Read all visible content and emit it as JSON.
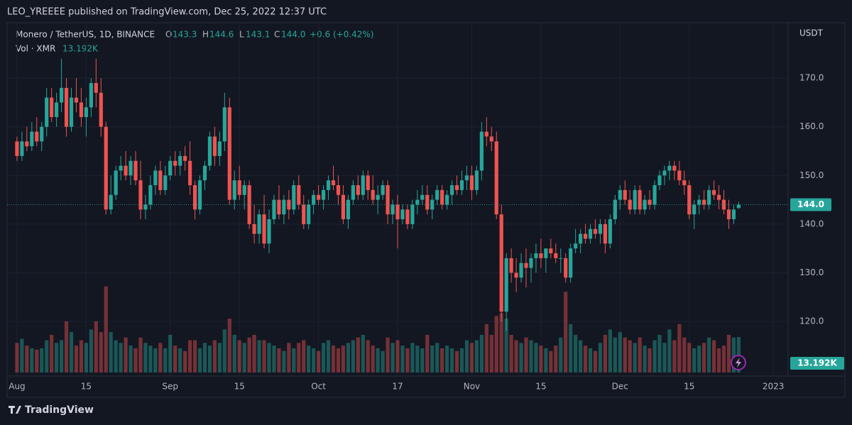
{
  "chart_data": {
    "type": "candlestick",
    "header": "LEO_YREEEE published on TradingView.com, Dec 25, 2022 12:37 UTC",
    "symbol": "Monero / TetherUS, 1D, BINANCE",
    "ohlc_letters": [
      "O",
      "H",
      "L",
      "C"
    ],
    "last_labels": [
      "143.3",
      "144.6",
      "143.1",
      "144.0"
    ],
    "change": "+0.6 (+0.42%)",
    "volume_title": "Vol · XMR",
    "volume_label": "13.192K",
    "price_label": "144.0",
    "y_unit": "USDT",
    "footer": "TradingView",
    "up_color": "#26a69a",
    "down_color": "#ef5350",
    "grid": true,
    "xlim": [
      "2022-07-30",
      "2023-01-04"
    ],
    "ylim": [
      109.5,
      181.4
    ],
    "volume_ylim": [
      0,
      130
    ],
    "yticks": [
      {
        "value": 120,
        "label": "120.0"
      },
      {
        "value": 130,
        "label": "130.0"
      },
      {
        "value": 140,
        "label": "140.0"
      },
      {
        "value": 150,
        "label": "150.0"
      },
      {
        "value": 160,
        "label": "160.0"
      },
      {
        "value": 170,
        "label": "170.0"
      }
    ],
    "xticks": [
      {
        "value": "2022-08-01",
        "label": "Aug"
      },
      {
        "value": "2022-08-15",
        "label": "15"
      },
      {
        "value": "2022-09-01",
        "label": "Sep"
      },
      {
        "value": "2022-09-15",
        "label": "15"
      },
      {
        "value": "2022-10-01",
        "label": "Oct"
      },
      {
        "value": "2022-10-17",
        "label": "17"
      },
      {
        "value": "2022-11-01",
        "label": "Nov"
      },
      {
        "value": "2022-11-15",
        "label": "15"
      },
      {
        "value": "2022-12-01",
        "label": "Dec"
      },
      {
        "value": "2022-12-15",
        "label": "15"
      },
      {
        "value": "2023-01-01",
        "label": "2023"
      }
    ],
    "candles": [
      [
        "2022-08-01",
        157,
        158,
        153,
        154,
        11
      ],
      [
        "2022-08-02",
        154,
        159,
        153,
        157,
        12.5
      ],
      [
        "2022-08-03",
        157,
        160,
        155,
        156,
        10
      ],
      [
        "2022-08-04",
        156,
        161,
        155,
        159,
        9
      ],
      [
        "2022-08-05",
        159,
        162,
        156,
        157,
        8.5
      ],
      [
        "2022-08-06",
        157,
        161,
        155,
        160,
        9
      ],
      [
        "2022-08-07",
        160,
        168,
        158,
        166,
        12
      ],
      [
        "2022-08-08",
        166,
        168,
        161,
        162,
        14
      ],
      [
        "2022-08-09",
        162,
        167,
        160,
        165,
        11
      ],
      [
        "2022-08-10",
        165,
        174,
        163,
        168,
        12
      ],
      [
        "2022-08-11",
        168,
        170,
        158,
        160,
        19
      ],
      [
        "2022-08-12",
        160,
        168,
        159,
        166,
        15
      ],
      [
        "2022-08-13",
        166,
        170,
        163,
        165,
        10
      ],
      [
        "2022-08-14",
        165,
        168,
        160,
        162,
        12
      ],
      [
        "2022-08-15",
        162,
        166,
        158,
        164,
        11
      ],
      [
        "2022-08-16",
        164,
        170,
        162,
        169,
        16
      ],
      [
        "2022-08-17",
        169,
        174,
        164,
        167,
        19
      ],
      [
        "2022-08-18",
        167,
        170,
        158,
        160,
        15
      ],
      [
        "2022-08-19",
        160,
        161,
        142,
        143,
        32
      ],
      [
        "2022-08-20",
        143,
        150,
        142,
        146,
        15
      ],
      [
        "2022-08-21",
        146,
        152,
        145,
        151,
        12
      ],
      [
        "2022-08-22",
        151,
        154,
        149,
        152,
        11
      ],
      [
        "2022-08-23",
        152,
        155,
        149,
        150,
        13
      ],
      [
        "2022-08-24",
        150,
        154,
        148,
        153,
        10
      ],
      [
        "2022-08-25",
        153,
        155,
        148,
        149,
        9
      ],
      [
        "2022-08-26",
        149,
        153,
        141,
        143,
        13
      ],
      [
        "2022-08-27",
        143,
        146,
        141,
        144,
        11
      ],
      [
        "2022-08-28",
        144,
        150,
        143,
        148,
        10
      ],
      [
        "2022-08-29",
        148,
        152,
        146,
        151,
        9
      ],
      [
        "2022-08-30",
        151,
        153,
        146,
        147,
        11
      ],
      [
        "2022-08-31",
        147,
        152,
        146,
        150,
        9
      ],
      [
        "2022-09-01",
        150,
        154,
        149,
        153,
        14
      ],
      [
        "2022-09-02",
        153,
        155,
        150,
        152,
        10
      ],
      [
        "2022-09-03",
        152,
        155,
        150,
        154,
        9
      ],
      [
        "2022-09-04",
        154,
        156,
        151,
        153,
        8
      ],
      [
        "2022-09-05",
        153,
        157,
        146,
        148,
        12
      ],
      [
        "2022-09-06",
        148,
        149,
        141,
        143,
        12
      ],
      [
        "2022-09-07",
        143,
        150,
        142,
        149,
        9
      ],
      [
        "2022-09-08",
        149,
        153,
        147,
        152,
        11
      ],
      [
        "2022-09-09",
        152,
        159,
        151,
        158,
        10
      ],
      [
        "2022-09-10",
        158,
        160,
        152,
        154,
        12
      ],
      [
        "2022-09-11",
        154,
        159,
        152,
        157,
        11
      ],
      [
        "2022-09-12",
        157,
        167,
        155,
        164,
        16
      ],
      [
        "2022-09-13",
        164,
        166,
        144,
        145,
        20
      ],
      [
        "2022-09-14",
        145,
        151,
        143,
        149,
        14
      ],
      [
        "2022-09-15",
        149,
        152,
        145,
        146,
        12
      ],
      [
        "2022-09-16",
        146,
        149,
        143,
        148,
        11
      ],
      [
        "2022-09-17",
        148,
        149,
        139,
        140,
        13
      ],
      [
        "2022-09-18",
        140,
        144,
        136,
        138,
        14
      ],
      [
        "2022-09-19",
        138,
        143,
        136,
        142,
        12
      ],
      [
        "2022-09-20",
        142,
        146,
        135,
        136,
        12
      ],
      [
        "2022-09-21",
        136,
        143,
        134,
        141,
        11
      ],
      [
        "2022-09-22",
        141,
        146,
        140,
        145,
        10
      ],
      [
        "2022-09-23",
        145,
        148,
        141,
        142,
        9
      ],
      [
        "2022-09-24",
        142,
        146,
        140,
        145,
        8
      ],
      [
        "2022-09-25",
        145,
        147,
        141,
        143,
        11
      ],
      [
        "2022-09-26",
        143,
        149,
        142,
        148,
        9
      ],
      [
        "2022-09-27",
        148,
        150,
        143,
        144,
        11
      ],
      [
        "2022-09-28",
        144,
        146,
        139,
        140,
        12
      ],
      [
        "2022-09-29",
        140,
        145,
        139,
        144,
        10
      ],
      [
        "2022-09-30",
        144,
        147,
        142,
        146,
        9
      ],
      [
        "2022-10-01",
        146,
        148,
        144,
        145,
        8
      ],
      [
        "2022-10-02",
        145,
        148,
        143,
        147,
        11
      ],
      [
        "2022-10-03",
        147,
        150,
        145,
        149,
        12
      ],
      [
        "2022-10-04",
        149,
        152,
        147,
        148,
        10
      ],
      [
        "2022-10-05",
        148,
        150,
        144,
        146,
        9
      ],
      [
        "2022-10-06",
        146,
        148,
        140,
        141,
        10
      ],
      [
        "2022-10-07",
        141,
        146,
        139,
        145,
        11
      ],
      [
        "2022-10-08",
        145,
        149,
        144,
        148,
        12
      ],
      [
        "2022-10-09",
        148,
        150,
        145,
        146,
        13
      ],
      [
        "2022-10-10",
        146,
        151,
        145,
        150,
        14
      ],
      [
        "2022-10-11",
        150,
        151,
        145,
        147,
        12
      ],
      [
        "2022-10-12",
        147,
        150,
        144,
        145,
        10
      ],
      [
        "2022-10-13",
        145,
        148,
        142,
        146,
        9
      ],
      [
        "2022-10-14",
        146,
        149,
        145,
        148,
        8
      ],
      [
        "2022-10-15",
        148,
        149,
        140,
        142,
        13
      ],
      [
        "2022-10-16",
        142,
        145,
        140,
        144,
        11
      ],
      [
        "2022-10-17",
        144,
        146,
        135,
        141,
        12
      ],
      [
        "2022-10-18",
        141,
        144,
        140,
        143,
        10
      ],
      [
        "2022-10-19",
        143,
        144,
        139,
        140,
        9
      ],
      [
        "2022-10-20",
        140,
        145,
        139,
        144,
        11
      ],
      [
        "2022-10-21",
        144,
        147,
        142,
        145,
        10
      ],
      [
        "2022-10-22",
        145,
        148,
        144,
        146,
        9
      ],
      [
        "2022-10-23",
        146,
        148,
        142,
        143,
        14
      ],
      [
        "2022-10-24",
        143,
        146,
        141,
        145,
        10
      ],
      [
        "2022-10-25",
        145,
        148,
        144,
        147,
        11
      ],
      [
        "2022-10-26",
        147,
        148,
        143,
        144,
        9
      ],
      [
        "2022-10-27",
        144,
        147,
        143,
        146,
        10
      ],
      [
        "2022-10-28",
        146,
        149,
        144,
        148,
        9
      ],
      [
        "2022-10-29",
        148,
        150,
        146,
        147,
        8
      ],
      [
        "2022-10-30",
        147,
        151,
        146,
        149,
        9
      ],
      [
        "2022-10-31",
        149,
        152,
        147,
        150,
        12
      ],
      [
        "2022-11-01",
        150,
        152,
        145,
        147,
        11
      ],
      [
        "2022-11-02",
        147,
        152,
        146,
        151,
        12
      ],
      [
        "2022-11-03",
        151,
        161,
        149,
        159,
        14
      ],
      [
        "2022-11-04",
        159,
        162,
        156,
        158,
        18
      ],
      [
        "2022-11-05",
        158,
        160,
        155,
        157,
        14
      ],
      [
        "2022-11-06",
        157,
        159,
        141,
        142,
        21
      ],
      [
        "2022-11-07",
        142,
        144,
        120,
        122,
        22
      ],
      [
        "2022-11-08",
        122,
        134,
        118,
        133,
        20
      ],
      [
        "2022-11-09",
        133,
        135,
        128,
        130,
        14
      ],
      [
        "2022-11-10",
        130,
        133,
        126,
        129,
        12
      ],
      [
        "2022-11-11",
        129,
        134,
        128,
        132,
        11
      ],
      [
        "2022-11-12",
        132,
        135,
        127,
        131,
        13
      ],
      [
        "2022-11-13",
        131,
        134,
        128,
        133,
        12
      ],
      [
        "2022-11-14",
        133,
        136,
        130,
        134,
        11
      ],
      [
        "2022-11-15",
        134,
        137,
        131,
        133,
        10
      ],
      [
        "2022-11-16",
        133,
        135,
        130,
        135,
        9
      ],
      [
        "2022-11-17",
        135,
        137,
        133,
        134,
        8
      ],
      [
        "2022-11-18",
        134,
        136,
        132,
        133,
        10
      ],
      [
        "2022-11-19",
        133,
        135,
        130,
        133,
        13
      ],
      [
        "2022-11-20",
        133,
        134,
        128,
        129,
        30
      ],
      [
        "2022-11-21",
        129,
        136,
        128,
        135,
        18
      ],
      [
        "2022-11-22",
        135,
        139,
        134,
        136,
        14
      ],
      [
        "2022-11-23",
        136,
        139,
        134,
        138,
        12
      ],
      [
        "2022-11-24",
        138,
        140,
        136,
        137,
        10
      ],
      [
        "2022-11-25",
        137,
        140,
        136,
        139,
        9
      ],
      [
        "2022-11-26",
        139,
        141,
        137,
        138,
        8
      ],
      [
        "2022-11-27",
        138,
        141,
        136,
        140,
        11
      ],
      [
        "2022-11-28",
        140,
        141,
        134,
        136,
        14
      ],
      [
        "2022-11-29",
        136,
        142,
        135,
        141,
        16
      ],
      [
        "2022-11-30",
        141,
        146,
        140,
        145,
        13
      ],
      [
        "2022-12-01",
        145,
        148,
        143,
        147,
        15
      ],
      [
        "2022-12-02",
        147,
        149,
        144,
        145,
        13
      ],
      [
        "2022-12-03",
        145,
        147,
        142,
        143,
        12
      ],
      [
        "2022-12-04",
        143,
        148,
        142,
        147,
        11
      ],
      [
        "2022-12-05",
        147,
        148,
        142,
        143,
        13
      ],
      [
        "2022-12-06",
        143,
        146,
        142,
        145,
        10
      ],
      [
        "2022-12-07",
        145,
        147,
        143,
        144,
        9
      ],
      [
        "2022-12-08",
        144,
        149,
        143,
        148,
        12
      ],
      [
        "2022-12-09",
        148,
        151,
        147,
        150,
        14
      ],
      [
        "2022-12-10",
        150,
        152,
        148,
        151,
        11
      ],
      [
        "2022-12-11",
        151,
        153,
        149,
        152,
        16
      ],
      [
        "2022-12-12",
        152,
        153,
        149,
        151,
        12
      ],
      [
        "2022-12-13",
        151,
        153,
        148,
        149,
        18
      ],
      [
        "2022-12-14",
        149,
        151,
        146,
        148,
        13
      ],
      [
        "2022-12-15",
        148,
        149,
        141,
        142,
        11
      ],
      [
        "2022-12-16",
        142,
        145,
        139,
        144,
        9
      ],
      [
        "2022-12-17",
        144,
        146,
        142,
        145,
        10
      ],
      [
        "2022-12-18",
        145,
        147,
        143,
        144,
        11
      ],
      [
        "2022-12-19",
        144,
        148,
        143,
        147,
        13
      ],
      [
        "2022-12-20",
        147,
        149,
        145,
        146,
        12
      ],
      [
        "2022-12-21",
        146,
        148,
        143,
        145,
        9
      ],
      [
        "2022-12-22",
        145,
        147,
        142,
        143,
        10
      ],
      [
        "2022-12-23",
        143,
        145,
        139,
        141,
        14
      ],
      [
        "2022-12-24",
        141,
        144,
        140,
        143,
        13
      ],
      [
        "2022-12-25",
        143.3,
        144.6,
        143.1,
        144.0,
        13.192
      ]
    ]
  }
}
